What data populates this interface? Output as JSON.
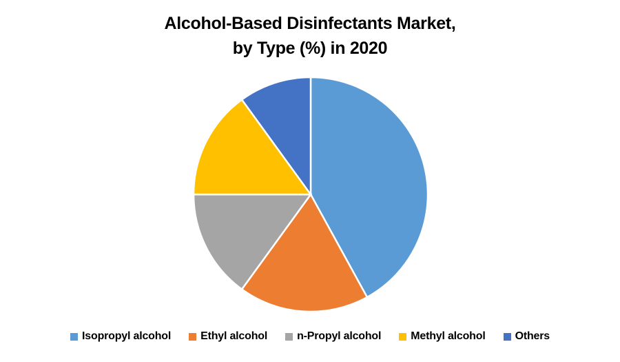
{
  "title": {
    "line1": "Alcohol-Based Disinfectants Market,",
    "line2": "by Type (%) in 2020"
  },
  "chart_data": {
    "type": "pie",
    "title": "Alcohol-Based Disinfectants Market, by Type (%) in 2020",
    "unit": "%",
    "labels": [
      "Isopropyl alcohol",
      "Ethyl alcohol",
      "n-Propyl alcohol",
      "Methyl alcohol",
      "Others"
    ],
    "values": [
      42,
      18,
      15,
      15,
      10
    ],
    "colors": [
      "#5B9BD5",
      "#ED7D31",
      "#A5A5A5",
      "#FFC000",
      "#4472C4"
    ],
    "start_angle_deg": 0,
    "direction": "clockwise",
    "legend_position": "bottom",
    "slice_border_color": "#FFFFFF",
    "background_color": "#FFFFFF",
    "title_color": "#000000"
  }
}
